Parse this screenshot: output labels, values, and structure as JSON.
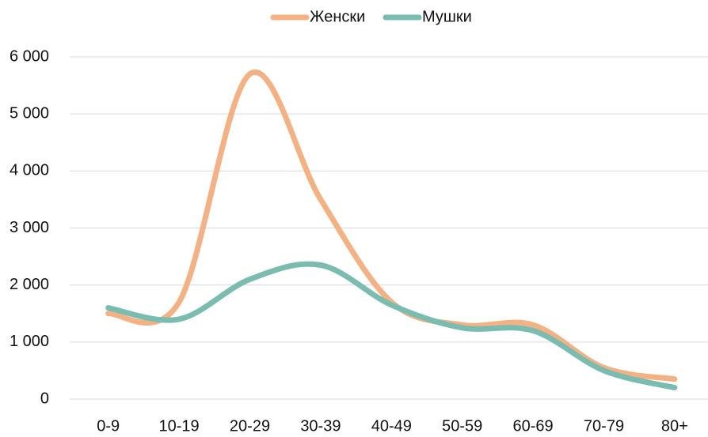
{
  "chart_data": {
    "type": "line",
    "categories": [
      "0-9",
      "10-19",
      "20-29",
      "30-39",
      "40-49",
      "50-59",
      "60-69",
      "70-79",
      "80+"
    ],
    "series": [
      {
        "name": "Женски",
        "color": "#f4b183",
        "values": [
          1500,
          1700,
          5700,
          3500,
          1700,
          1300,
          1300,
          550,
          350
        ]
      },
      {
        "name": "Мушки",
        "color": "#7bbcb0",
        "values": [
          1600,
          1400,
          2100,
          2350,
          1650,
          1250,
          1200,
          500,
          200
        ]
      }
    ],
    "ylim": [
      0,
      6000
    ],
    "yticks": [
      0,
      {
        "value": 1000,
        "label": "1 000"
      },
      {
        "value": 2000,
        "label": "2 000"
      },
      {
        "value": 3000,
        "label": "3 000"
      },
      {
        "value": 4000,
        "label": "4 000"
      },
      {
        "value": 5000,
        "label": "5 000"
      },
      {
        "value": 6000,
        "label": "6 000"
      }
    ],
    "grid": true,
    "legend": "top",
    "smooth": true
  }
}
